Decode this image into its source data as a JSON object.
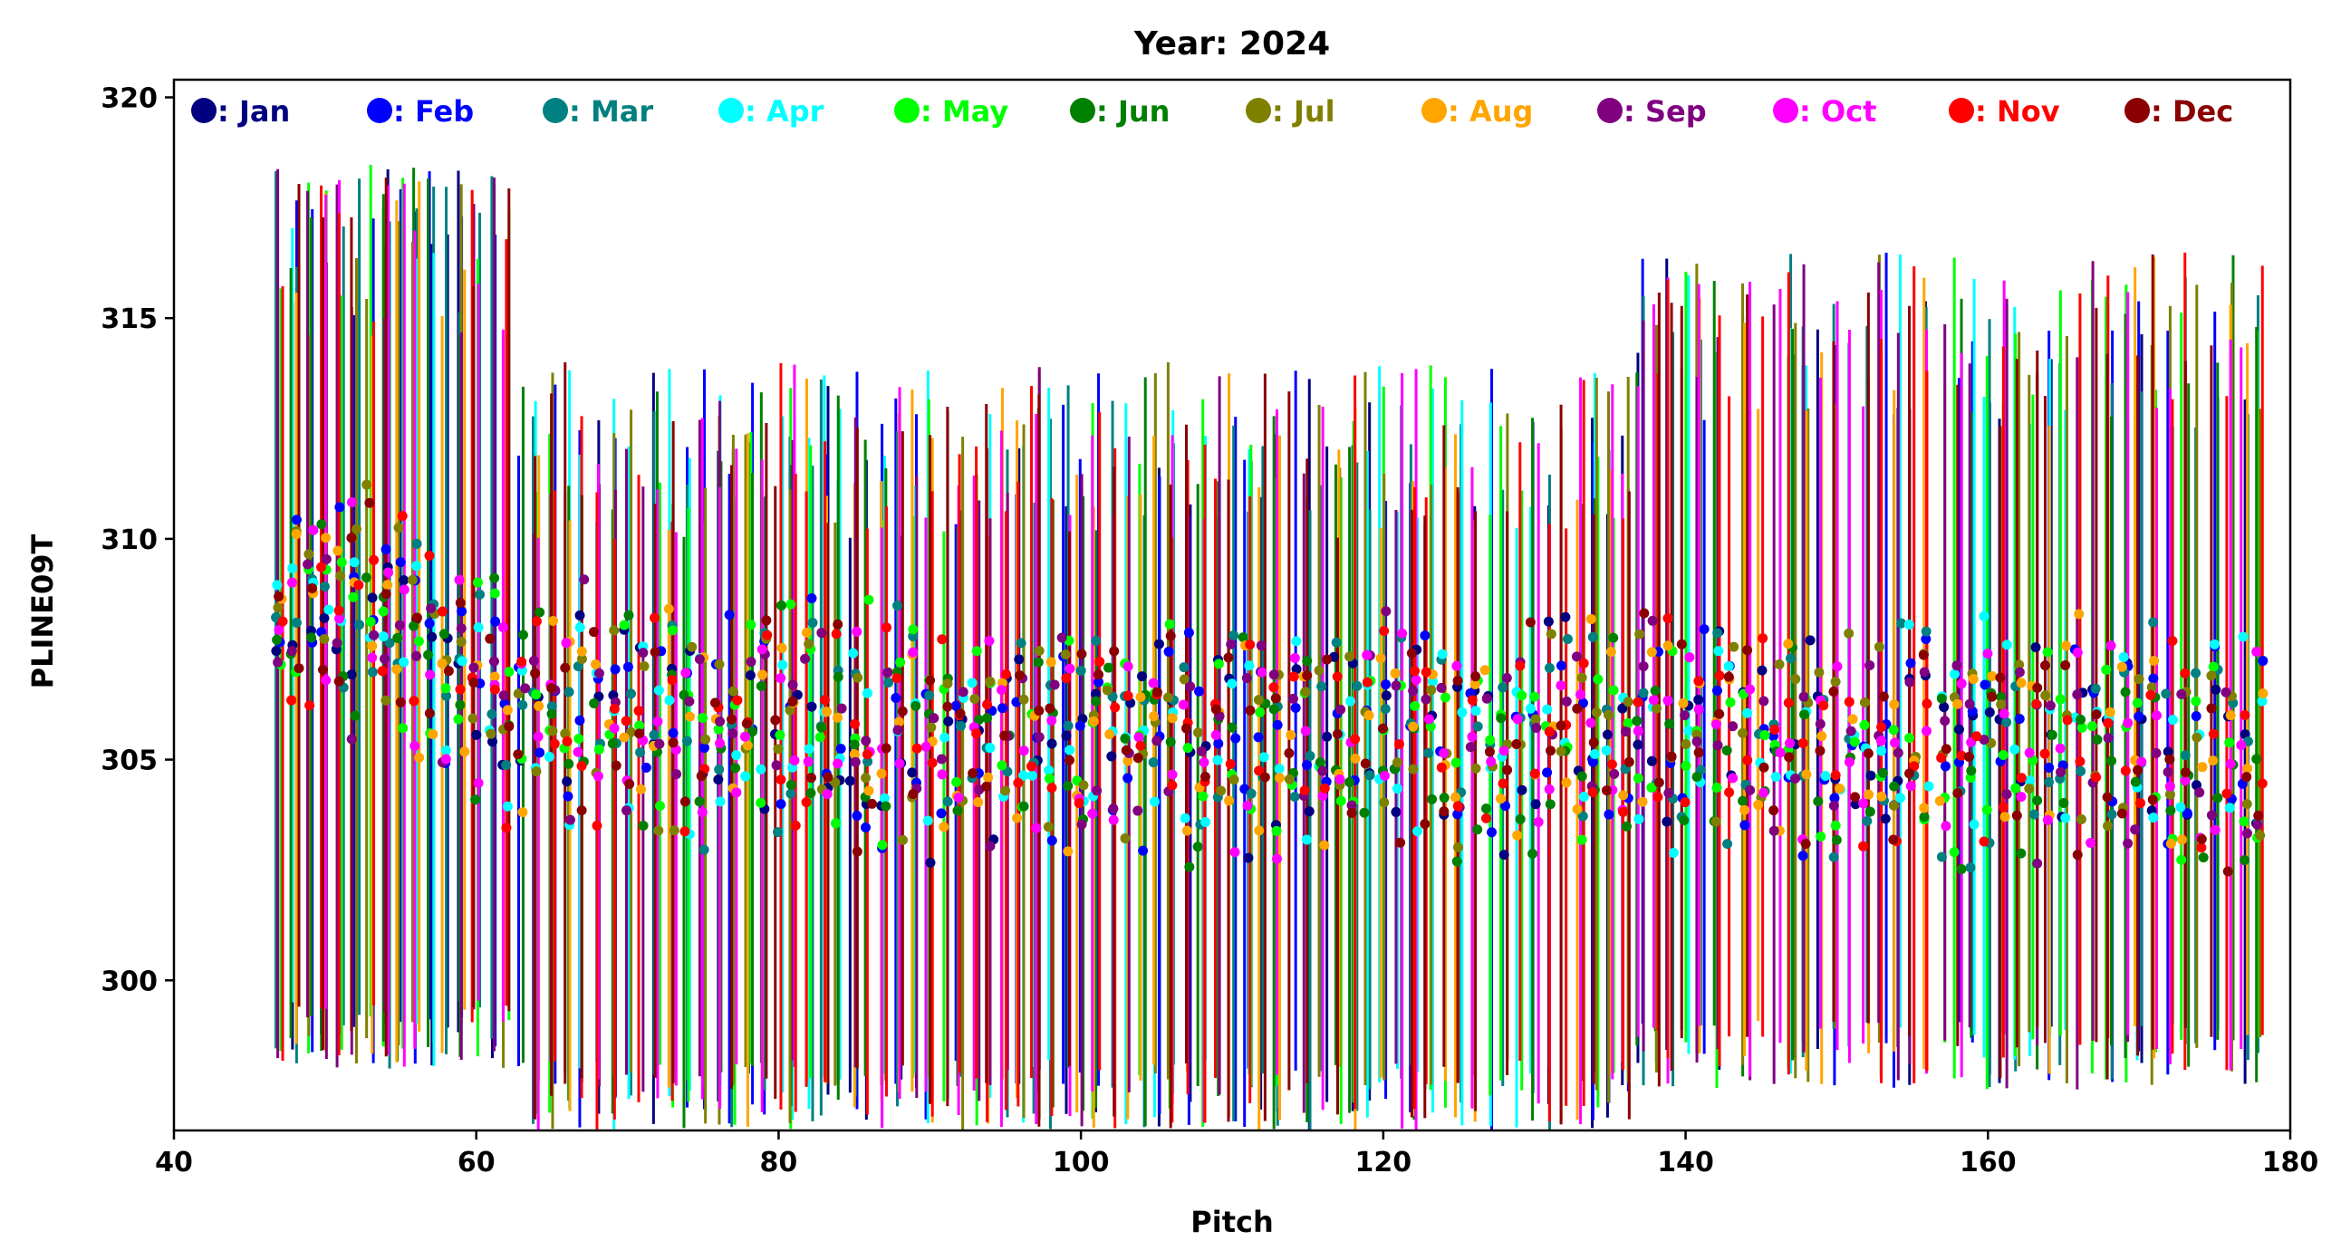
{
  "chart_data": {
    "type": "scatter",
    "title": "Year: 2024",
    "xlabel": "Pitch",
    "ylabel": "PLINE09T",
    "xlim": [
      40,
      180
    ],
    "ylim": [
      296.6,
      320.4
    ],
    "xticks": [
      40,
      60,
      80,
      100,
      120,
      140,
      160,
      180
    ],
    "yticks": [
      300,
      305,
      310,
      315,
      320
    ],
    "grid": false,
    "legend_placement": "top",
    "legend_orientation": "horizontal",
    "error_bars": true,
    "series": [
      {
        "name": ": Jan",
        "color": "#000080",
        "seed": 11
      },
      {
        "name": ": Feb",
        "color": "#0000ff",
        "seed": 23
      },
      {
        "name": ": Mar",
        "color": "#008080",
        "seed": 37
      },
      {
        "name": ": Apr",
        "color": "#00ffff",
        "seed": 41
      },
      {
        "name": ": May",
        "color": "#00ff00",
        "seed": 53
      },
      {
        "name": ": Jun",
        "color": "#008000",
        "seed": 67
      },
      {
        "name": ": Jul",
        "color": "#808000",
        "seed": 71
      },
      {
        "name": ": Aug",
        "color": "#ffa500",
        "seed": 83
      },
      {
        "name": ": Sep",
        "color": "#800080",
        "seed": 97
      },
      {
        "name": ": Oct",
        "color": "#ff00ff",
        "seed": 101
      },
      {
        "name": ": Nov",
        "color": "#ff0000",
        "seed": 113
      },
      {
        "name": ": Dec",
        "color": "#8b0000",
        "seed": 127
      }
    ],
    "x_points": [
      47,
      48,
      49,
      50,
      51,
      52,
      53,
      54,
      55,
      56,
      57,
      58,
      59,
      60,
      61,
      62,
      63,
      64,
      65,
      66,
      67,
      68,
      69,
      70,
      71,
      72,
      73,
      74,
      75,
      76,
      77,
      78,
      79,
      80,
      81,
      82,
      83,
      84,
      85,
      86,
      87,
      88,
      89,
      90,
      91,
      92,
      93,
      94,
      95,
      96,
      97,
      98,
      99,
      100,
      101,
      102,
      103,
      104,
      105,
      106,
      107,
      108,
      109,
      110,
      111,
      112,
      113,
      114,
      115,
      116,
      117,
      118,
      119,
      120,
      121,
      122,
      123,
      124,
      125,
      126,
      127,
      128,
      129,
      130,
      131,
      132,
      133,
      134,
      135,
      136,
      137,
      138,
      139,
      140,
      141,
      142,
      143,
      144,
      145,
      146,
      147,
      148,
      149,
      150,
      151,
      152,
      153,
      154,
      155,
      156,
      157,
      158,
      159,
      160,
      161,
      162,
      163,
      164,
      165,
      166,
      167,
      168,
      169,
      170,
      171,
      172,
      173,
      174,
      175,
      176,
      177,
      178
    ],
    "y_center_profile": [
      {
        "x": 47,
        "y": 309.0
      },
      {
        "x": 55,
        "y": 308.2
      },
      {
        "x": 62,
        "y": 306.3
      },
      {
        "x": 75,
        "y": 305.8
      },
      {
        "x": 100,
        "y": 305.5
      },
      {
        "x": 140,
        "y": 305.6
      },
      {
        "x": 178,
        "y": 305.2
      }
    ],
    "error_bar_extents": [
      {
        "x_range": [
          47,
          62
        ],
        "upper": 318.5,
        "lower": 298.0
      },
      {
        "x_range": [
          62,
          136
        ],
        "upper": 314.0,
        "lower": 296.6
      },
      {
        "x_range": [
          136,
          178
        ],
        "upper": 316.5,
        "lower": 297.5
      }
    ]
  }
}
